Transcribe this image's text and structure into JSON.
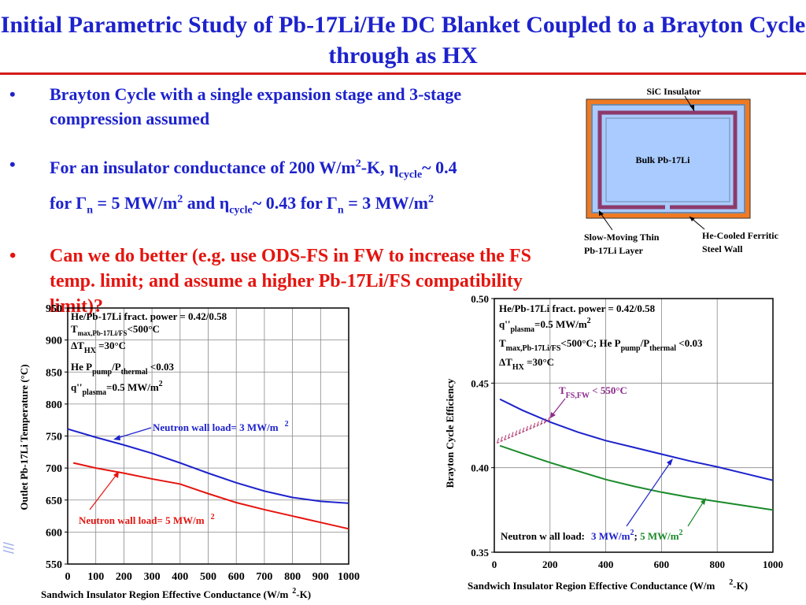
{
  "title": "Initial Parametric Study of Pb-17Li/He DC Blanket Coupled to a Brayton Cycle through as HX",
  "bullets": {
    "b1": "Brayton Cycle with a single expansion stage and 3-stage compression assumed",
    "b2": {
      "prefix": "For an insulator conductance of 200 W/m",
      "sup2": "2",
      "mid1": "-K, η",
      "sub_cycle": "cycle",
      "mid2": "~ 0.4",
      "line2_prefix": "for Γ",
      "sub_n": "n",
      "mid3": " = 5 MW/m",
      "mid4": " and η",
      "mid5": "~ 0.43 for Γ",
      "mid6": " = 3 MW/m"
    },
    "b3": "Can we do better (e.g. use ODS-FS in FW to increase the FS temp. limit;  and assume a higher Pb-17Li/FS compatibility limit)?"
  },
  "diagram": {
    "sic_insulator": "SiC Insulator",
    "bulk": "Bulk Pb-17Li",
    "slow_layer_1": "Slow-Moving Thin",
    "slow_layer_2": "Pb-17Li Layer",
    "he_wall_1": "He-Cooled Ferritic",
    "he_wall_2": "Steel Wall",
    "colors": {
      "steel": "#f07a22",
      "insulator": "#9aa8b8",
      "lithium_layer": "#8c3a6a",
      "bulk": "#a9cbff"
    }
  },
  "chart_data": [
    {
      "type": "line",
      "xlabel": "Sandwich Insulator Region Effective Conductance (W/m²-K)",
      "ylabel": "Outlet Pb-17Li Temperature (°C)",
      "xlim": [
        0,
        1000
      ],
      "ylim": [
        550,
        950
      ],
      "xticks": [
        0,
        100,
        200,
        300,
        400,
        500,
        600,
        700,
        800,
        900,
        1000
      ],
      "yticks": [
        550,
        600,
        650,
        700,
        750,
        800,
        850,
        900,
        950
      ],
      "grid": true,
      "series": [
        {
          "name": "Neutron wall load= 3 MW/m2",
          "color": "#1d22cc",
          "x": [
            0,
            100,
            200,
            300,
            400,
            500,
            600,
            700,
            800,
            900,
            1000
          ],
          "y": [
            761,
            748,
            736,
            723,
            708,
            692,
            677,
            664,
            654,
            648,
            645
          ]
        },
        {
          "name": "Neutron wall load= 5 MW/m2",
          "color": "#e5140f",
          "x": [
            20,
            100,
            200,
            300,
            400,
            500,
            600,
            700,
            800,
            900,
            1000
          ],
          "y": [
            708,
            700,
            692,
            683,
            675,
            660,
            646,
            635,
            625,
            615,
            605
          ]
        }
      ],
      "annotation_lines": {
        "l1": "He/Pb-17Li fract. power = 0.42/0.58",
        "l2_a": "T",
        "l2_sub": "max,Pb-17Li/FS",
        "l2_b": "<500°C",
        "l3_a": "ΔT",
        "l3_sub": "HX",
        "l3_b": " =30°C",
        "l4_a": "He  P",
        "l4_sub1": "pump",
        "l4_b": "/P",
        "l4_sub2": "thermal",
        "l4_c": " <0.03",
        "l5_a": "q''",
        "l5_sub": "plasma",
        "l5_b": "=0.5 MW/m",
        "l5_sup": "2"
      },
      "label_3": "Neutron wall load= 3 MW/m",
      "label_5": "Neutron wall load= 5 MW/m",
      "label_sup": "2"
    },
    {
      "type": "line",
      "xlabel": "Sandwich Insulator Region Effective Conductance (W/m²-K)",
      "ylabel": "Brayton Cycle Efficiency",
      "xlim": [
        0,
        1000
      ],
      "ylim": [
        0.35,
        0.5
      ],
      "xticks": [
        0,
        200,
        400,
        600,
        800,
        1000
      ],
      "yticks": [
        "0.35",
        "0.40",
        "0.45",
        "0.50"
      ],
      "grid": true,
      "series": [
        {
          "name": "3 MW/m2",
          "color": "#1d22cc",
          "x": [
            20,
            100,
            200,
            300,
            400,
            500,
            600,
            700,
            800,
            900,
            1000
          ],
          "y": [
            0.4405,
            0.434,
            0.427,
            0.421,
            0.416,
            0.412,
            0.408,
            0.404,
            0.4005,
            0.3965,
            0.3925
          ]
        },
        {
          "name": "5 MW/m2",
          "color": "#1a8a2a",
          "x": [
            20,
            100,
            200,
            300,
            400,
            500,
            600,
            700,
            800,
            900,
            1000
          ],
          "y": [
            0.413,
            0.4085,
            0.403,
            0.398,
            0.393,
            0.389,
            0.3855,
            0.3825,
            0.38,
            0.3775,
            0.375
          ]
        }
      ],
      "tfs_label_a": "T",
      "tfs_label_sub": "FS,FW",
      "tfs_label_b": " < 550°C",
      "annotation_lines": {
        "l1": "He/Pb-17Li fract. power = 0.42/0.58",
        "l2_a": "q''",
        "l2_sub": "plasma",
        "l2_b": "=0.5 MW/m",
        "l2_sup": "2",
        "l3_a": "T",
        "l3_sub": "max,Pb-17Li/FS",
        "l3_b": "<500°C;  He   P",
        "l3_sub2": "pump",
        "l3_c": "/P",
        "l3_sub3": "thermal",
        "l3_d": " <0.03",
        "l4_a": "ΔT",
        "l4_sub": "HX",
        "l4_b": " =30°C"
      },
      "legend_prefix": "Neutron w all load:",
      "legend_3": "3 MW/m",
      "legend_sep": ";",
      "legend_5": " 5 MW/m",
      "legend_sup": "2"
    }
  ],
  "xlabel_left": "Sandwich Insulator Region Effective Conductance (W/m",
  "xlabel_sup": "2",
  "xlabel_right": "-K)"
}
